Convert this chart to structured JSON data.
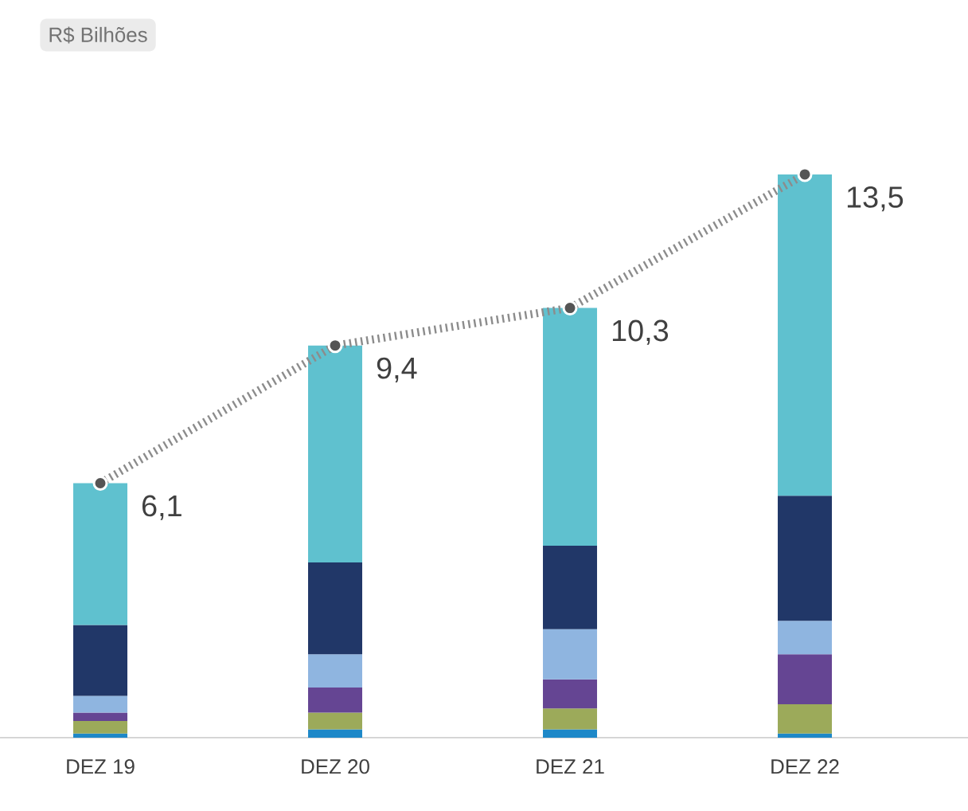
{
  "chart_data": {
    "type": "bar",
    "annotations": [
      "R$ Bilhões"
    ],
    "categories": [
      "DEZ 19",
      "DEZ 20",
      "DEZ 21",
      "DEZ 22"
    ],
    "stacked": true,
    "series": [
      {
        "color": "#1e88c8",
        "values": [
          0.1,
          0.2,
          0.2,
          0.1
        ]
      },
      {
        "color": "#9caa5a",
        "values": [
          0.3,
          0.4,
          0.5,
          0.7
        ]
      },
      {
        "color": "#654593",
        "values": [
          0.2,
          0.6,
          0.7,
          1.2
        ]
      },
      {
        "color": "#8fb5e0",
        "values": [
          0.4,
          0.8,
          1.2,
          0.8
        ]
      },
      {
        "color": "#213768",
        "values": [
          1.7,
          2.2,
          2.0,
          3.0
        ]
      },
      {
        "color": "#5fc1cf",
        "values": [
          3.4,
          5.2,
          5.7,
          7.7
        ]
      },
      {
        "type": "line",
        "color": "#555555",
        "marker": "circle",
        "line_style": "dotted",
        "values": [
          6.1,
          9.4,
          10.3,
          13.5
        ],
        "value_labels": [
          "6,1",
          "9,4",
          "10,3",
          "13,5"
        ]
      }
    ]
  }
}
